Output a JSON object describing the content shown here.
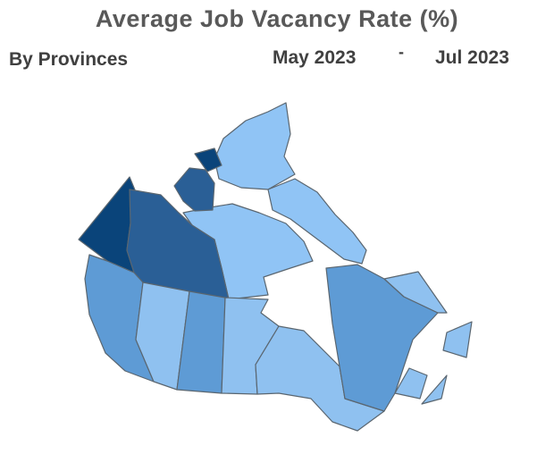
{
  "header": {
    "title": "Average Job Vacancy Rate (%)",
    "subtitle": "By Provinces",
    "period_start": "May 2023",
    "period_separator": "-",
    "period_end": "Jul 2023"
  }
}
